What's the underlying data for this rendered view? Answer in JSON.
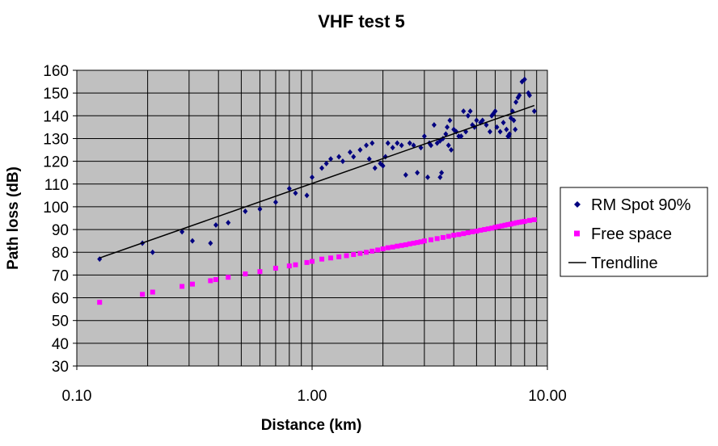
{
  "chart_data": {
    "type": "scatter",
    "title": "VHF test 5",
    "xlabel": "Distance (km)",
    "ylabel": "Path loss (dB)",
    "x_scale": "log",
    "xlim": [
      0.1,
      10
    ],
    "ylim": [
      30,
      160
    ],
    "x_tick_labels": [
      "0.10",
      "1.00",
      "10.00"
    ],
    "y_tick_labels": [
      "30",
      "40",
      "50",
      "60",
      "70",
      "80",
      "90",
      "100",
      "110",
      "120",
      "130",
      "140",
      "150",
      "160"
    ],
    "grid": true,
    "plot_background": "#c0c0c0",
    "legend_position": "right",
    "series": [
      {
        "name": "RM Spot 90%",
        "marker": "diamond",
        "color": "#000080",
        "points": [
          [
            0.125,
            77
          ],
          [
            0.19,
            84
          ],
          [
            0.21,
            80
          ],
          [
            0.28,
            89
          ],
          [
            0.31,
            85
          ],
          [
            0.37,
            84
          ],
          [
            0.39,
            92
          ],
          [
            0.44,
            93
          ],
          [
            0.52,
            98
          ],
          [
            0.6,
            99
          ],
          [
            0.7,
            102
          ],
          [
            0.8,
            108
          ],
          [
            0.85,
            106
          ],
          [
            0.95,
            105
          ],
          [
            1.0,
            113
          ],
          [
            1.1,
            117
          ],
          [
            1.15,
            119
          ],
          [
            1.2,
            121
          ],
          [
            1.3,
            122
          ],
          [
            1.35,
            120
          ],
          [
            1.45,
            124
          ],
          [
            1.5,
            122
          ],
          [
            1.6,
            125
          ],
          [
            1.7,
            127
          ],
          [
            1.75,
            121
          ],
          [
            1.8,
            128
          ],
          [
            1.85,
            117
          ],
          [
            1.95,
            119
          ],
          [
            2.0,
            118
          ],
          [
            2.05,
            122
          ],
          [
            2.1,
            128
          ],
          [
            2.2,
            126
          ],
          [
            2.3,
            128
          ],
          [
            2.4,
            127
          ],
          [
            2.5,
            114
          ],
          [
            2.6,
            128
          ],
          [
            2.7,
            127
          ],
          [
            2.8,
            115
          ],
          [
            2.9,
            126
          ],
          [
            3.0,
            131
          ],
          [
            3.1,
            113
          ],
          [
            3.15,
            128
          ],
          [
            3.2,
            127
          ],
          [
            3.3,
            136
          ],
          [
            3.4,
            128
          ],
          [
            3.5,
            113
          ],
          [
            3.5,
            129
          ],
          [
            3.55,
            115
          ],
          [
            3.6,
            130
          ],
          [
            3.7,
            132
          ],
          [
            3.75,
            135
          ],
          [
            3.8,
            127
          ],
          [
            3.85,
            138
          ],
          [
            3.9,
            125
          ],
          [
            4.0,
            134
          ],
          [
            4.1,
            133
          ],
          [
            4.2,
            131
          ],
          [
            4.3,
            131
          ],
          [
            4.4,
            142
          ],
          [
            4.5,
            133
          ],
          [
            4.6,
            140
          ],
          [
            4.7,
            142
          ],
          [
            4.8,
            136
          ],
          [
            4.9,
            135
          ],
          [
            5.0,
            138
          ],
          [
            5.2,
            137
          ],
          [
            5.3,
            138
          ],
          [
            5.5,
            136
          ],
          [
            5.7,
            133
          ],
          [
            5.8,
            140
          ],
          [
            5.9,
            141
          ],
          [
            6.0,
            142
          ],
          [
            6.1,
            135
          ],
          [
            6.3,
            133
          ],
          [
            6.5,
            137
          ],
          [
            6.7,
            134
          ],
          [
            6.8,
            131
          ],
          [
            6.85,
            131
          ],
          [
            6.9,
            132
          ],
          [
            7.0,
            139
          ],
          [
            7.1,
            142
          ],
          [
            7.2,
            138
          ],
          [
            7.3,
            134
          ],
          [
            7.35,
            146
          ],
          [
            7.5,
            148
          ],
          [
            7.6,
            149
          ],
          [
            7.8,
            155
          ],
          [
            8.0,
            156
          ],
          [
            8.3,
            150
          ],
          [
            8.4,
            149
          ],
          [
            8.8,
            142
          ]
        ]
      },
      {
        "name": "Free space",
        "marker": "square",
        "color": "#ff00ff",
        "points": [
          [
            0.125,
            58
          ],
          [
            0.19,
            61.5
          ],
          [
            0.21,
            62.5
          ],
          [
            0.28,
            65
          ],
          [
            0.31,
            66
          ],
          [
            0.37,
            67.5
          ],
          [
            0.39,
            68
          ],
          [
            0.44,
            69
          ],
          [
            0.52,
            70.5
          ],
          [
            0.6,
            71.5
          ],
          [
            0.7,
            73
          ],
          [
            0.8,
            74
          ],
          [
            0.85,
            74.5
          ],
          [
            0.95,
            75.5
          ],
          [
            1.0,
            76
          ],
          [
            1.1,
            77
          ],
          [
            1.2,
            77.5
          ],
          [
            1.3,
            78
          ],
          [
            1.4,
            78.5
          ],
          [
            1.5,
            79
          ],
          [
            1.6,
            79.5
          ],
          [
            1.7,
            80
          ],
          [
            1.8,
            80.5
          ],
          [
            1.9,
            81
          ],
          [
            2.0,
            81.5
          ],
          [
            2.1,
            82
          ],
          [
            2.2,
            82.3
          ],
          [
            2.3,
            82.7
          ],
          [
            2.4,
            83
          ],
          [
            2.5,
            83.3
          ],
          [
            2.6,
            83.7
          ],
          [
            2.7,
            84
          ],
          [
            2.8,
            84.3
          ],
          [
            2.9,
            84.6
          ],
          [
            3.0,
            85
          ],
          [
            3.2,
            85.5
          ],
          [
            3.4,
            86
          ],
          [
            3.6,
            86.5
          ],
          [
            3.8,
            87
          ],
          [
            4.0,
            87.5
          ],
          [
            4.2,
            87.8
          ],
          [
            4.4,
            88.2
          ],
          [
            4.6,
            88.6
          ],
          [
            4.8,
            89
          ],
          [
            5.0,
            89.3
          ],
          [
            5.2,
            89.7
          ],
          [
            5.4,
            90
          ],
          [
            5.6,
            90.3
          ],
          [
            5.8,
            90.6
          ],
          [
            6.0,
            91
          ],
          [
            6.2,
            91.3
          ],
          [
            6.4,
            91.6
          ],
          [
            6.6,
            91.9
          ],
          [
            6.8,
            92.2
          ],
          [
            7.0,
            92.4
          ],
          [
            7.2,
            92.7
          ],
          [
            7.4,
            93
          ],
          [
            7.6,
            93.2
          ],
          [
            7.8,
            93.4
          ],
          [
            8.0,
            93.6
          ],
          [
            8.4,
            94
          ],
          [
            8.8,
            94.3
          ]
        ]
      },
      {
        "name": "Trendline",
        "line": true,
        "color": "#000000",
        "points": [
          [
            0.125,
            77.5
          ],
          [
            8.8,
            144.5
          ]
        ]
      }
    ]
  }
}
